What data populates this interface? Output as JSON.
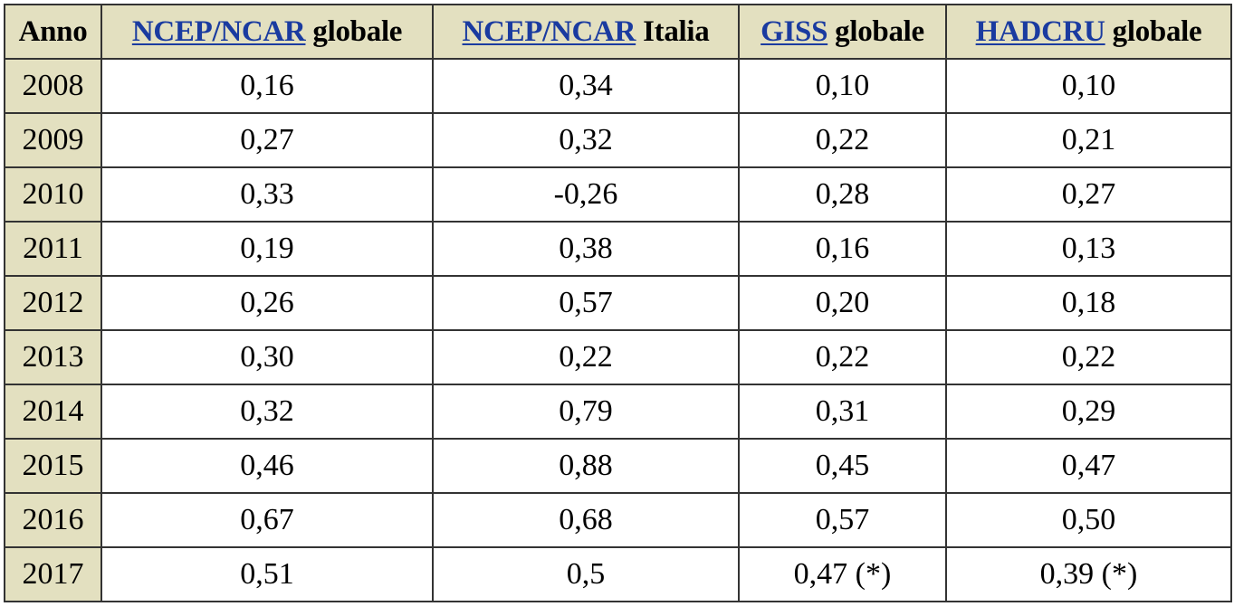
{
  "table": {
    "header": {
      "year": "Anno",
      "columns": [
        {
          "link": "NCEP/NCAR",
          "suffix": " globale"
        },
        {
          "link": "NCEP/NCAR",
          "suffix": " Italia"
        },
        {
          "link": "GISS",
          "suffix": " globale"
        },
        {
          "link": "HADCRU",
          "suffix": " globale"
        }
      ]
    },
    "rows": [
      {
        "year": "2008",
        "values": [
          "0,16",
          "0,34",
          "0,10",
          "0,10"
        ]
      },
      {
        "year": "2009",
        "values": [
          "0,27",
          "0,32",
          "0,22",
          "0,21"
        ]
      },
      {
        "year": "2010",
        "values": [
          "0,33",
          "-0,26",
          "0,28",
          "0,27"
        ]
      },
      {
        "year": "2011",
        "values": [
          "0,19",
          "0,38",
          "0,16",
          "0,13"
        ]
      },
      {
        "year": "2012",
        "values": [
          "0,26",
          "0,57",
          "0,20",
          "0,18"
        ]
      },
      {
        "year": "2013",
        "values": [
          "0,30",
          "0,22",
          "0,22",
          "0,22"
        ]
      },
      {
        "year": "2014",
        "values": [
          "0,32",
          "0,79",
          "0,31",
          "0,29"
        ]
      },
      {
        "year": "2015",
        "values": [
          "0,46",
          "0,88",
          "0,45",
          "0,47"
        ]
      },
      {
        "year": "2016",
        "values": [
          "0,67",
          "0,68",
          "0,57",
          "0,50"
        ]
      },
      {
        "year": "2017",
        "values": [
          "0,51",
          "0,5",
          "0,47 (*)",
          "0,39 (*)"
        ]
      }
    ]
  },
  "colors": {
    "header_bg": "#e3e0c0",
    "link": "#1a3ba0",
    "border": "#333333"
  }
}
